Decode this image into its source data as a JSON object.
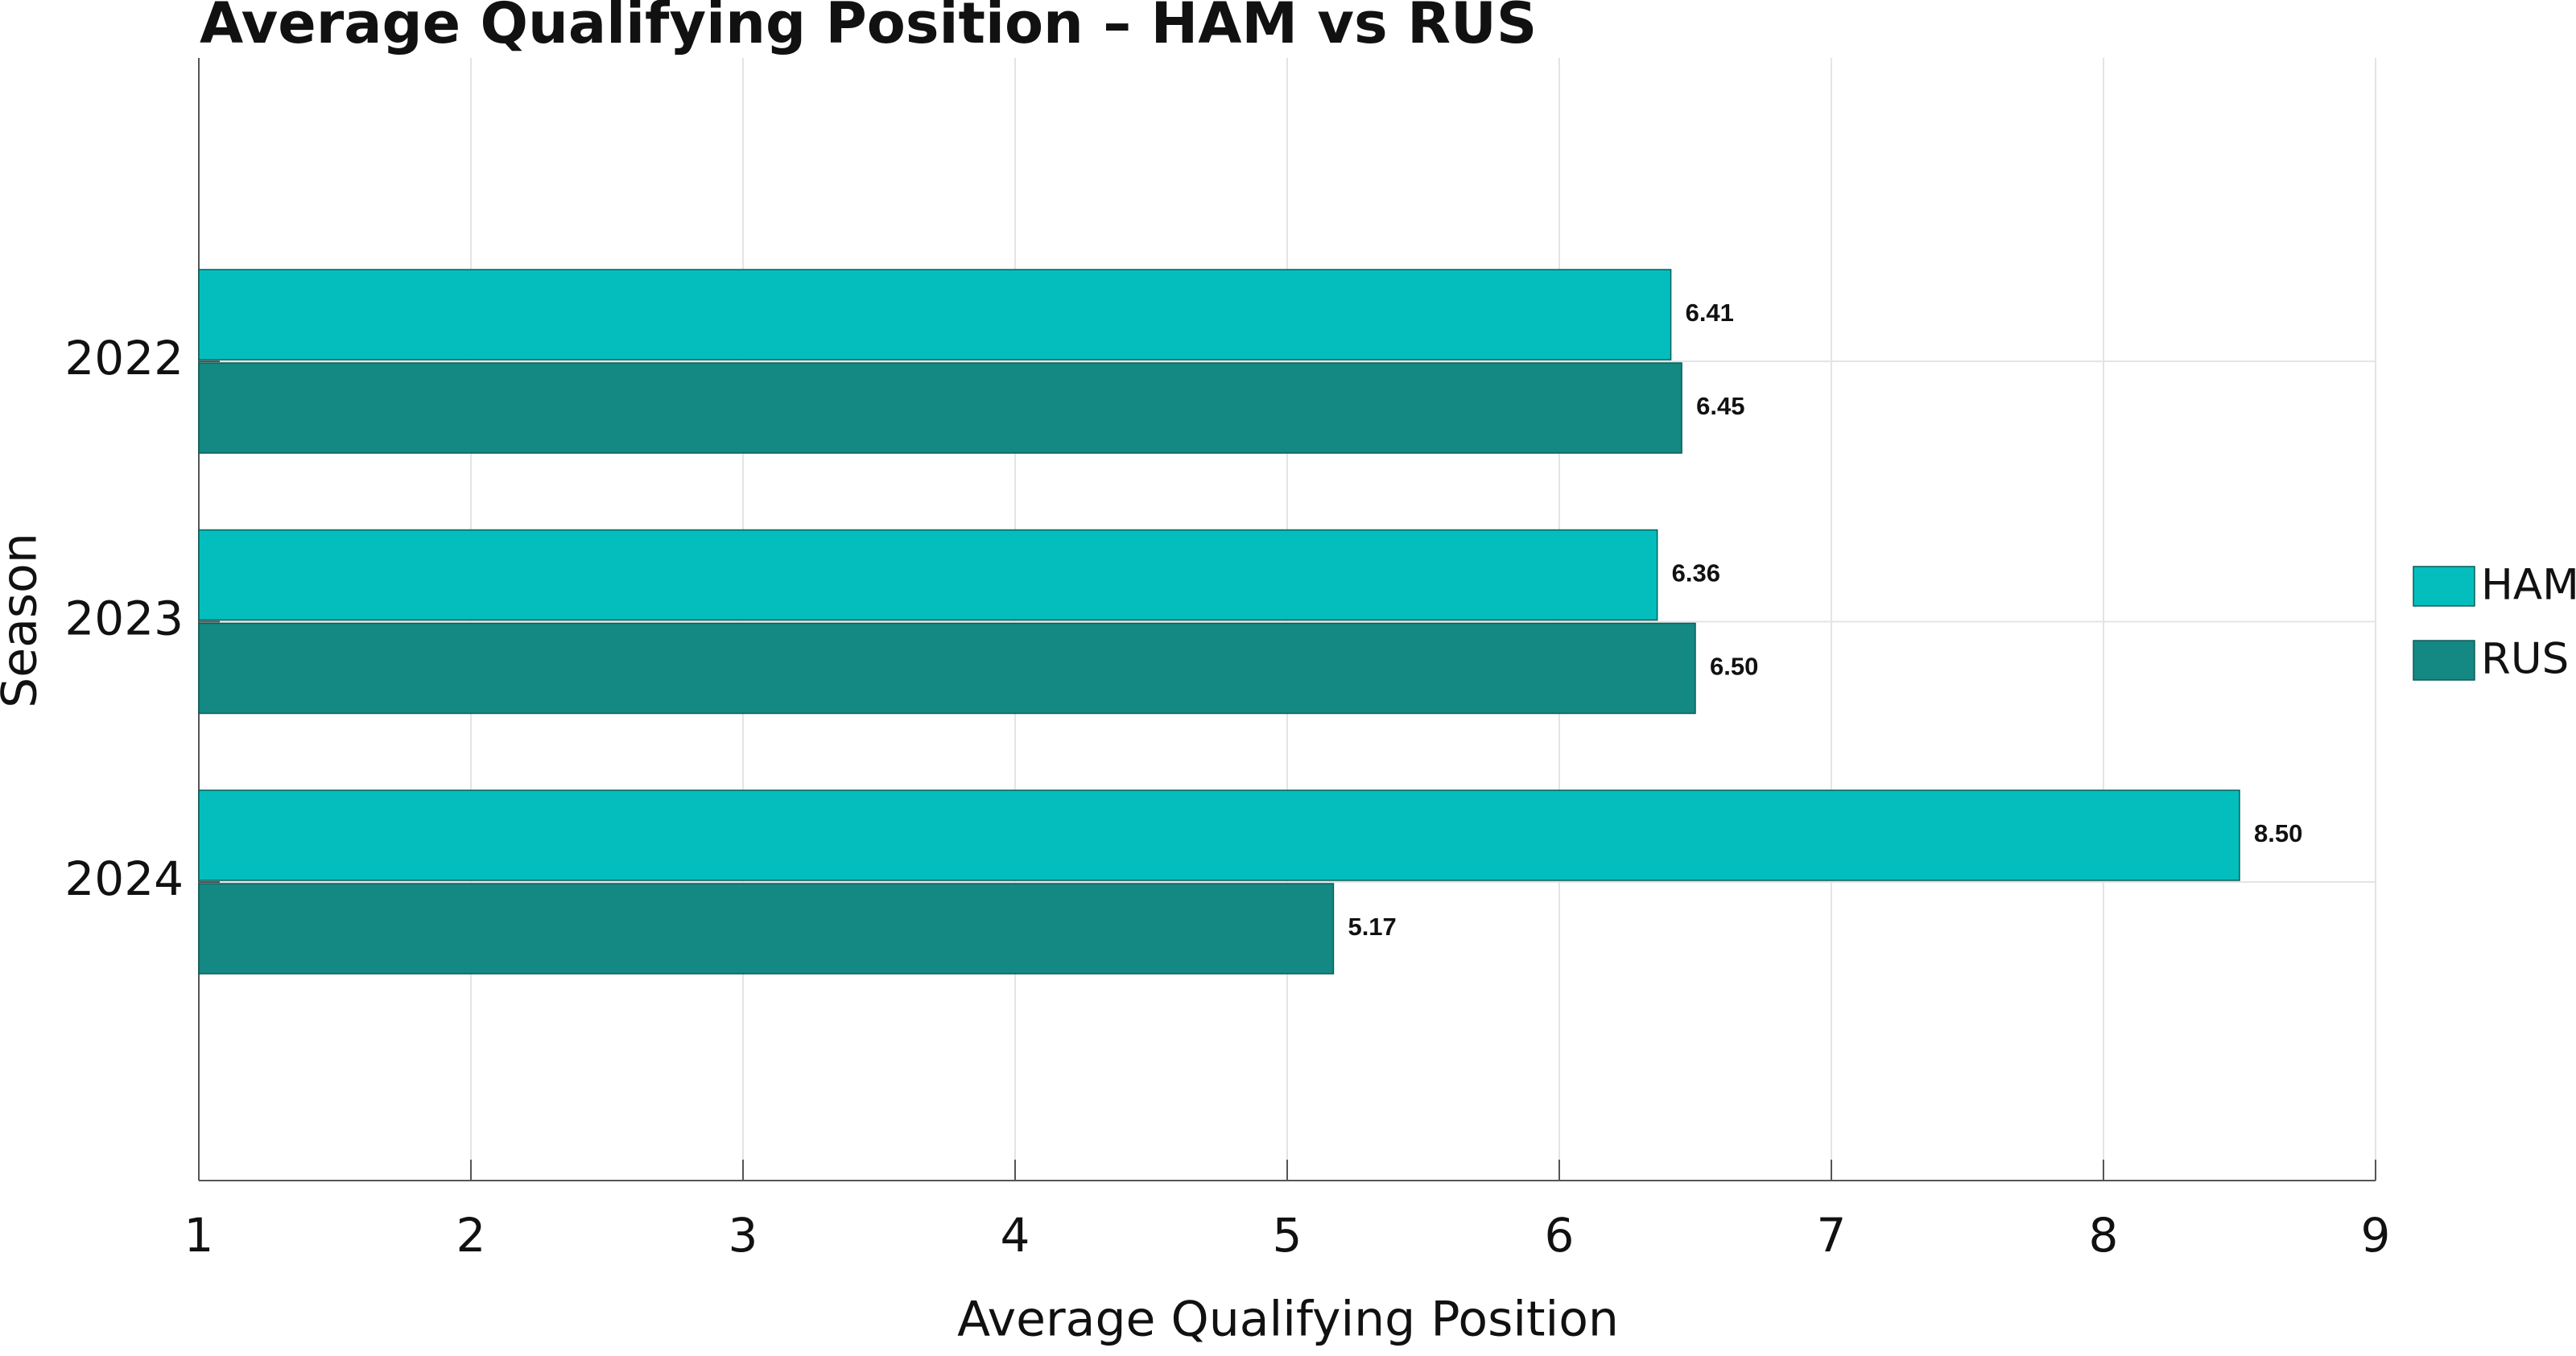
{
  "chart_data": {
    "type": "barh",
    "title": "Average Qualifying Position – HAM vs RUS",
    "xlabel": "Average Qualifying Position",
    "ylabel": "Season",
    "categories": [
      "2022",
      "2023",
      "2024"
    ],
    "series": [
      {
        "name": "HAM",
        "color": "#04bebe",
        "values": [
          6.41,
          6.36,
          8.5
        ],
        "value_labels": [
          "6.41",
          "6.36",
          "8.50"
        ]
      },
      {
        "name": "RUS",
        "color": "#148883",
        "values": [
          6.45,
          6.5,
          5.17
        ],
        "value_labels": [
          "6.45",
          "6.50",
          "5.17"
        ]
      }
    ],
    "xlim": [
      1,
      9
    ],
    "xticks": [
      1,
      2,
      3,
      4,
      5,
      6,
      7,
      8,
      9
    ],
    "grid": true,
    "legend": "right"
  }
}
